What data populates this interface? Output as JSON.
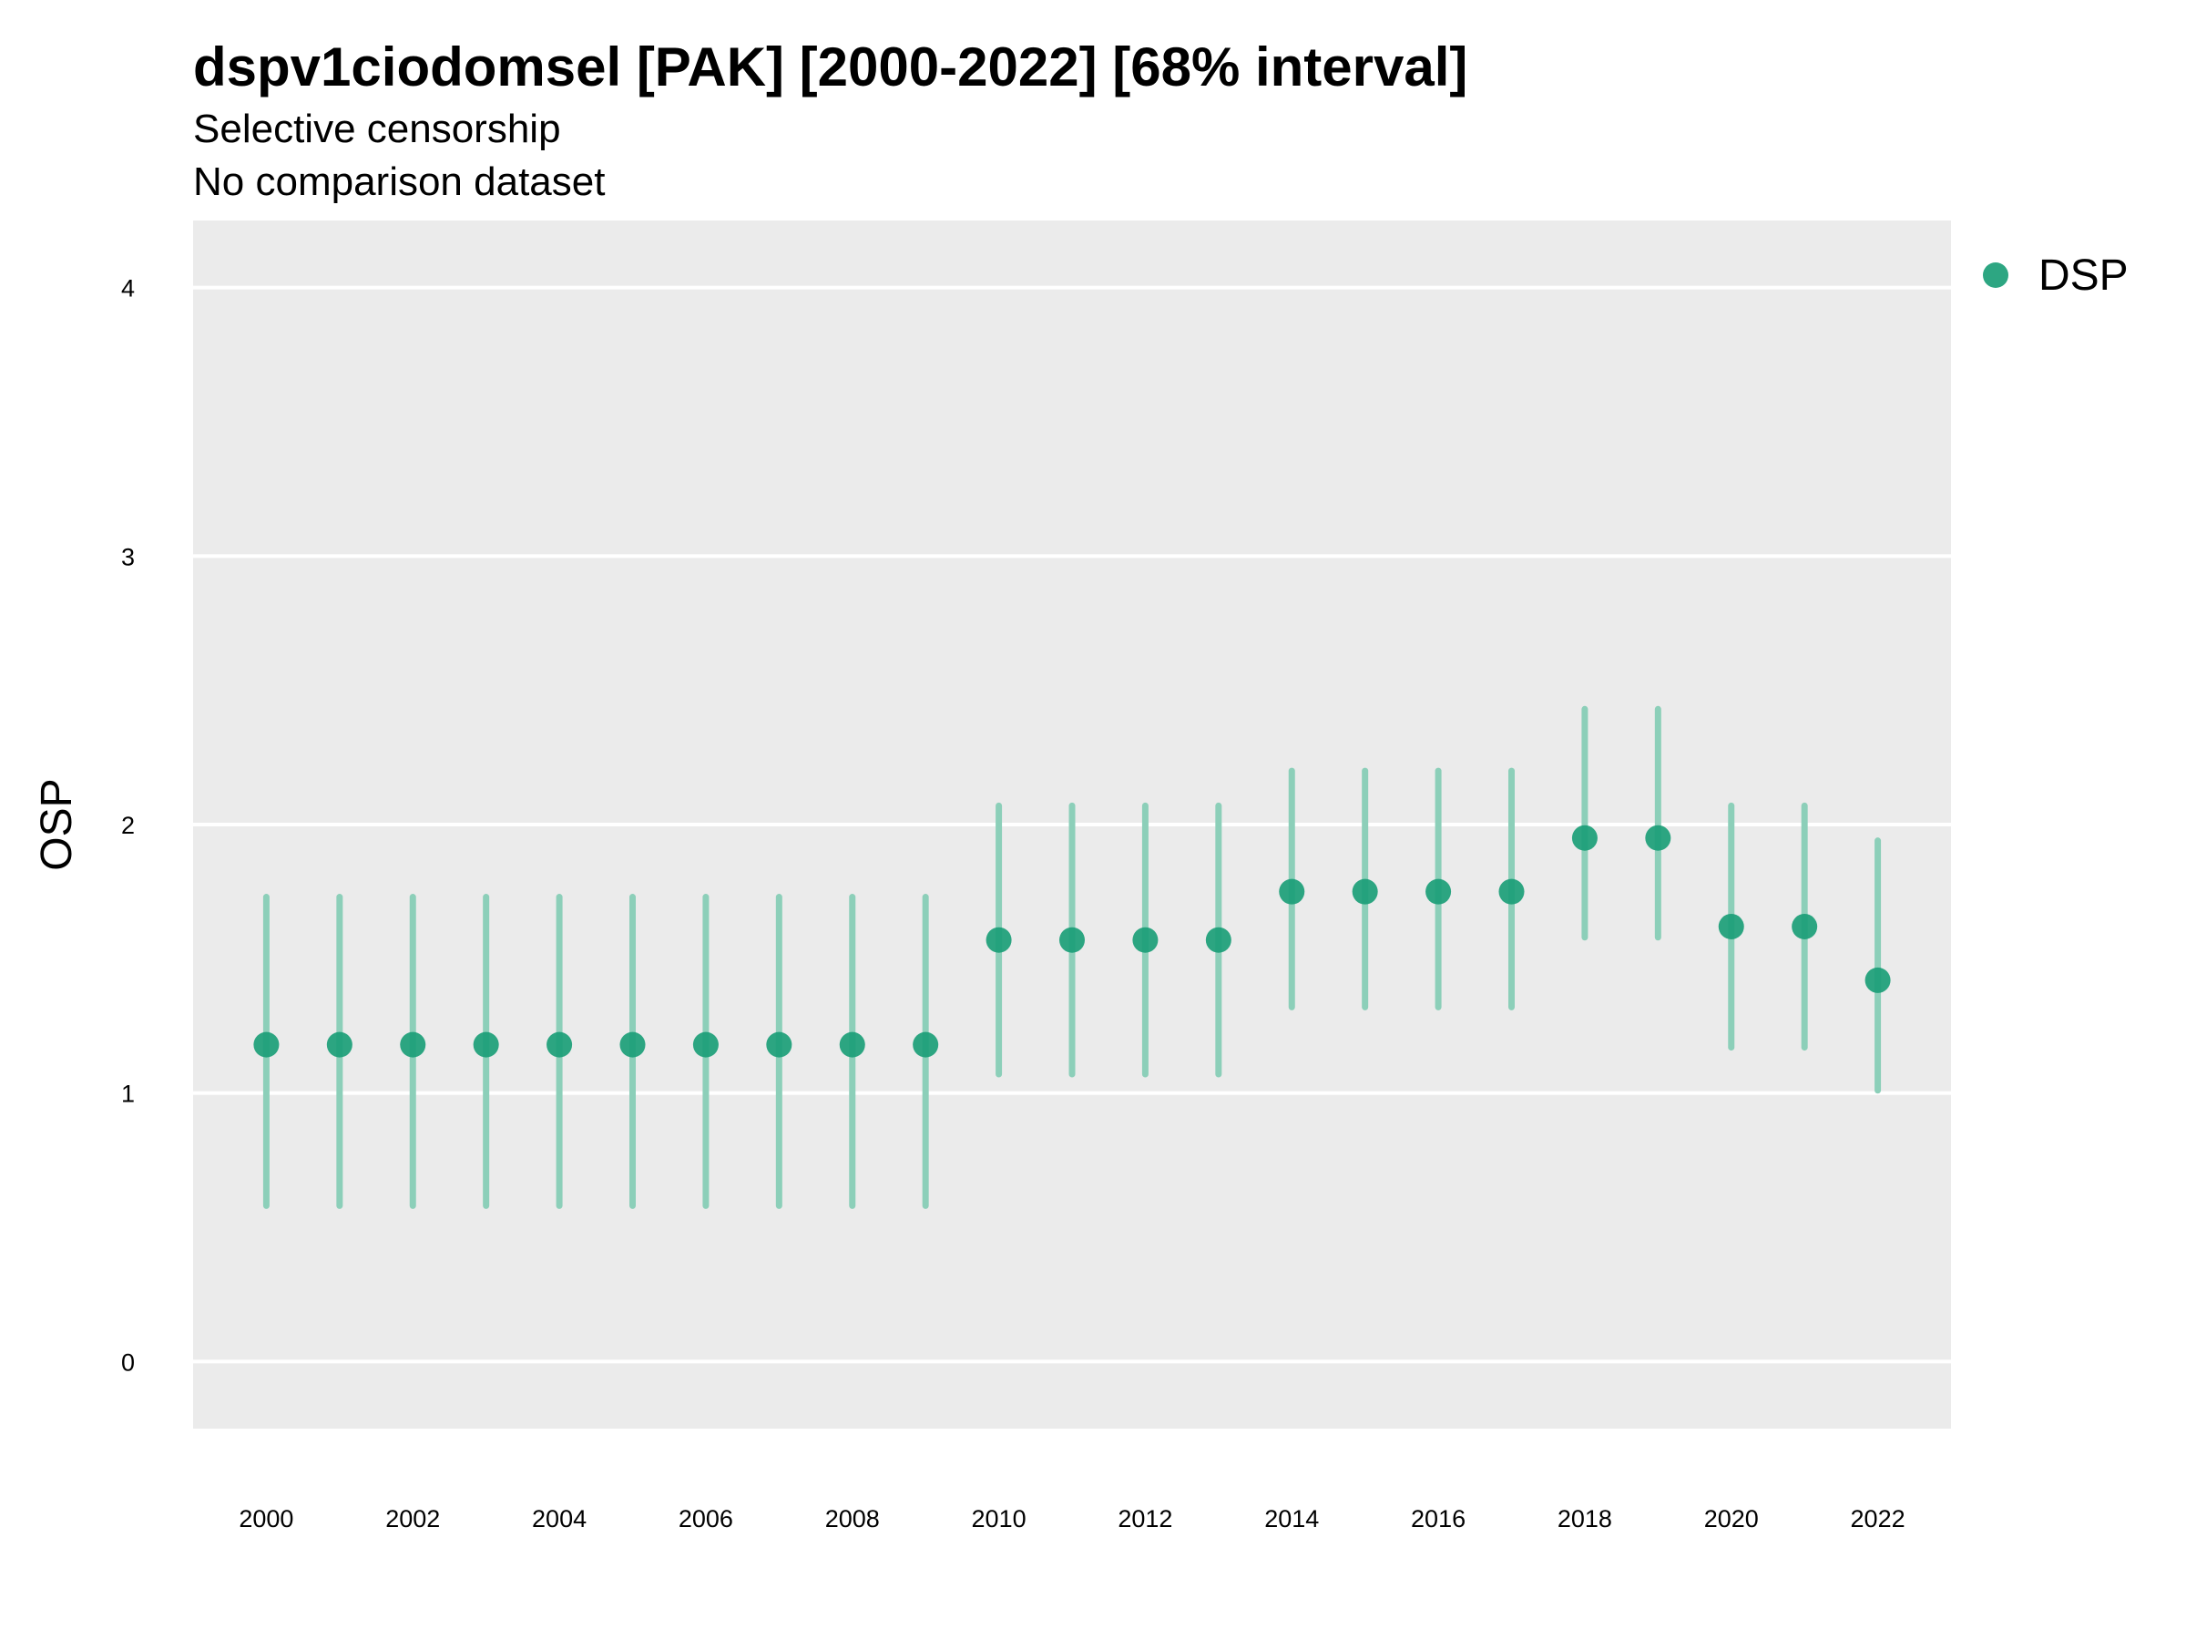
{
  "chart_data": {
    "type": "scatter",
    "title": "dspv1ciodomsel [PAK] [2000-2022] [68% interval]",
    "subtitles": [
      "Selective censorship",
      "No comparison dataset"
    ],
    "xlabel": "",
    "ylabel": "OSP",
    "xlim": [
      1999,
      2023
    ],
    "ylim": [
      -0.25,
      4.25
    ],
    "x_ticks": [
      2000,
      2002,
      2004,
      2006,
      2008,
      2010,
      2012,
      2014,
      2016,
      2018,
      2020,
      2022
    ],
    "y_ticks": [
      0,
      1,
      2,
      3,
      4
    ],
    "grid": true,
    "legend_position": "right",
    "colors": {
      "point": "#1b9e77",
      "interval": "#8ccfb9",
      "panel": "#ebebeb",
      "grid": "#ffffff"
    },
    "series": [
      {
        "name": "DSP",
        "x": [
          2000,
          2001,
          2002,
          2003,
          2004,
          2005,
          2006,
          2007,
          2008,
          2009,
          2010,
          2011,
          2012,
          2013,
          2014,
          2015,
          2016,
          2017,
          2018,
          2019,
          2020,
          2021,
          2022
        ],
        "y": [
          1.18,
          1.18,
          1.18,
          1.18,
          1.18,
          1.18,
          1.18,
          1.18,
          1.18,
          1.18,
          1.57,
          1.57,
          1.57,
          1.57,
          1.75,
          1.75,
          1.75,
          1.75,
          1.95,
          1.95,
          1.62,
          1.62,
          1.42
        ],
        "lower": [
          0.58,
          0.58,
          0.58,
          0.58,
          0.58,
          0.58,
          0.58,
          0.58,
          0.58,
          0.58,
          1.07,
          1.07,
          1.07,
          1.07,
          1.32,
          1.32,
          1.32,
          1.32,
          1.58,
          1.58,
          1.17,
          1.17,
          1.01
        ],
        "upper": [
          1.73,
          1.73,
          1.73,
          1.73,
          1.73,
          1.73,
          1.73,
          1.73,
          1.73,
          1.73,
          2.07,
          2.07,
          2.07,
          2.07,
          2.2,
          2.2,
          2.2,
          2.2,
          2.43,
          2.43,
          2.07,
          2.07,
          1.94
        ]
      }
    ]
  }
}
